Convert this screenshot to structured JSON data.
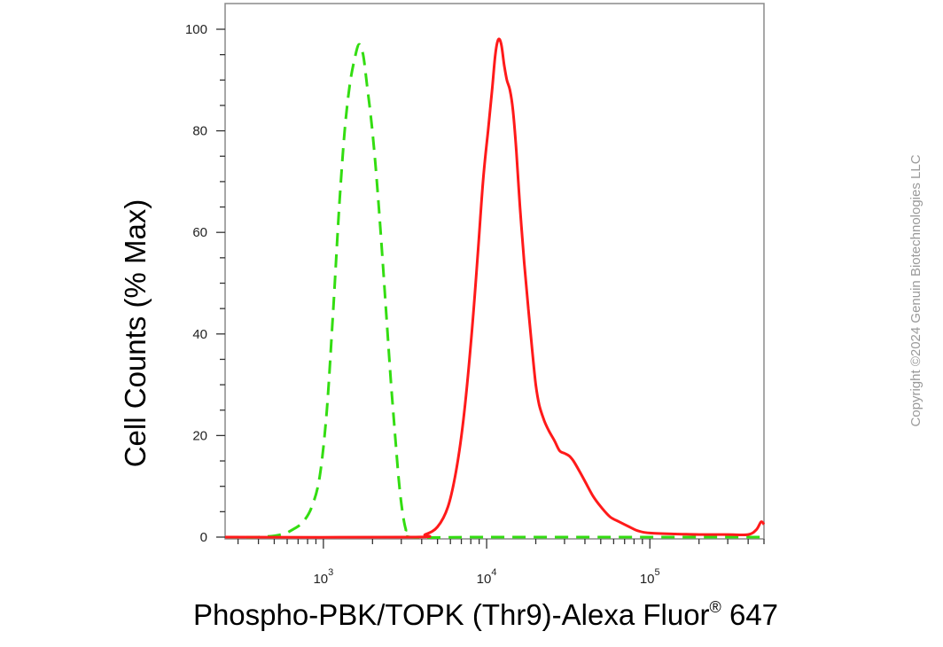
{
  "chart_data": {
    "type": "line",
    "xlabel": "Phospho-PBK/TOPK (Thr9)-Alexa Fluor",
    "xlabel_sup": "®",
    "xlabel_suffix": " 647",
    "ylabel": "Cell Counts (% Max)",
    "x_scale": "log",
    "xlim": [
      250,
      500000
    ],
    "ylim": [
      0,
      105
    ],
    "x_ticks": [
      {
        "value": 1000,
        "base": "10",
        "exp": "3"
      },
      {
        "value": 10000,
        "base": "10",
        "exp": "4"
      },
      {
        "value": 100000,
        "base": "10",
        "exp": "5"
      }
    ],
    "y_ticks": [
      0,
      20,
      40,
      60,
      80,
      100
    ],
    "grid": false,
    "series": [
      {
        "color": "#33dd11",
        "style": "dashed",
        "points": [
          [
            250,
            0
          ],
          [
            400,
            0
          ],
          [
            550,
            0.5
          ],
          [
            650,
            1.5
          ],
          [
            750,
            3
          ],
          [
            850,
            6
          ],
          [
            950,
            12
          ],
          [
            1050,
            25
          ],
          [
            1150,
            45
          ],
          [
            1250,
            65
          ],
          [
            1350,
            80
          ],
          [
            1450,
            89
          ],
          [
            1550,
            94
          ],
          [
            1650,
            97
          ],
          [
            1750,
            95
          ],
          [
            1850,
            89
          ],
          [
            1950,
            83
          ],
          [
            2050,
            76
          ],
          [
            2150,
            68
          ],
          [
            2300,
            55
          ],
          [
            2450,
            42
          ],
          [
            2600,
            30
          ],
          [
            2750,
            20
          ],
          [
            2900,
            11
          ],
          [
            3050,
            5
          ],
          [
            3200,
            1.5
          ],
          [
            3400,
            0
          ],
          [
            10000,
            0
          ],
          [
            100000,
            0
          ],
          [
            500000,
            0
          ]
        ]
      },
      {
        "color": "#ff1a1a",
        "style": "solid",
        "points": [
          [
            250,
            0
          ],
          [
            3500,
            0
          ],
          [
            4200,
            0.5
          ],
          [
            5000,
            2
          ],
          [
            5800,
            6
          ],
          [
            6500,
            13
          ],
          [
            7200,
            23
          ],
          [
            8000,
            38
          ],
          [
            8800,
            55
          ],
          [
            9500,
            70
          ],
          [
            10200,
            80
          ],
          [
            10800,
            88
          ],
          [
            11300,
            95
          ],
          [
            11800,
            98
          ],
          [
            12300,
            97
          ],
          [
            12800,
            93
          ],
          [
            13300,
            90
          ],
          [
            13900,
            88
          ],
          [
            14500,
            84
          ],
          [
            15200,
            76
          ],
          [
            16000,
            65
          ],
          [
            17000,
            54
          ],
          [
            18000,
            45
          ],
          [
            19000,
            37
          ],
          [
            20000,
            30
          ],
          [
            21000,
            26
          ],
          [
            22500,
            23
          ],
          [
            24000,
            21
          ],
          [
            26000,
            19
          ],
          [
            28000,
            17
          ],
          [
            30000,
            16.5
          ],
          [
            32000,
            16
          ],
          [
            34000,
            15
          ],
          [
            37000,
            13
          ],
          [
            40000,
            11
          ],
          [
            45000,
            8
          ],
          [
            50000,
            6
          ],
          [
            57000,
            4
          ],
          [
            65000,
            3
          ],
          [
            75000,
            2
          ],
          [
            85000,
            1.2
          ],
          [
            100000,
            0.8
          ],
          [
            150000,
            0.6
          ],
          [
            200000,
            0.5
          ],
          [
            300000,
            0.5
          ],
          [
            400000,
            0.5
          ],
          [
            450000,
            1.5
          ],
          [
            480000,
            3
          ],
          [
            500000,
            2.5
          ]
        ]
      }
    ]
  },
  "watermark": "Copyright ©2024 Genuin Biotechnologies LLC"
}
